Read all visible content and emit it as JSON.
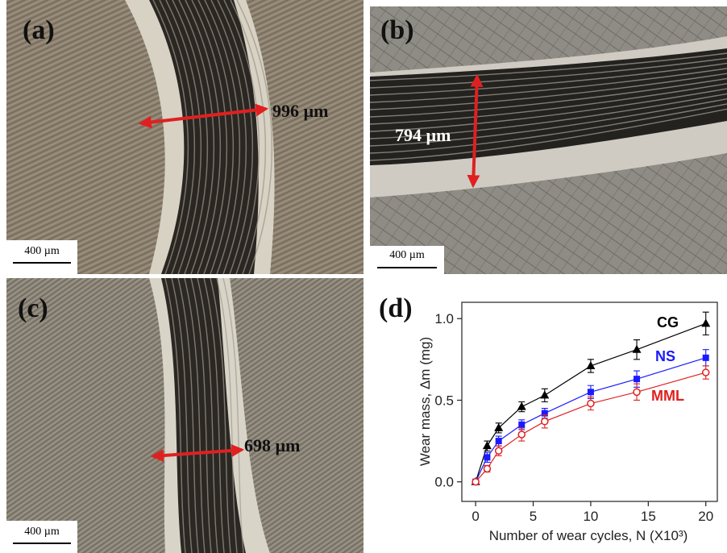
{
  "panels": [
    {
      "label": "(a)",
      "measurement": "996 µm",
      "scale_bar": "400 µm"
    },
    {
      "label": "(b)",
      "measurement": "794 µm",
      "scale_bar": "400 µm"
    },
    {
      "label": "(c)",
      "measurement": "698 µm",
      "scale_bar": "400 µm"
    }
  ],
  "chart_data": {
    "type": "line",
    "panel_label": "(d)",
    "x_label": "Number of wear cycles, N (X10³)",
    "y_label": "Wear mass, Δm (mg)",
    "x": [
      0,
      1,
      2,
      4,
      6,
      10,
      14,
      20
    ],
    "xlim": [
      -1.2,
      21
    ],
    "ylim": [
      -0.12,
      1.1
    ],
    "xticks": [
      0,
      5,
      10,
      15,
      20
    ],
    "yticks": [
      {
        "value": 0,
        "label": "0.0"
      },
      {
        "value": 0.5,
        "label": "0.5"
      },
      {
        "value": 1,
        "label": "1.0"
      }
    ],
    "series": [
      {
        "name": "CG",
        "color": "#000000",
        "marker": "triangle",
        "values": [
          0,
          0.22,
          0.33,
          0.46,
          0.53,
          0.71,
          0.81,
          0.97
        ],
        "errors": [
          0,
          0.03,
          0.03,
          0.03,
          0.04,
          0.04,
          0.06,
          0.07
        ]
      },
      {
        "name": "NS",
        "color": "#1a1aff",
        "marker": "square",
        "values": [
          0,
          0.15,
          0.25,
          0.35,
          0.42,
          0.55,
          0.63,
          0.76
        ],
        "errors": [
          0,
          0.03,
          0.03,
          0.03,
          0.03,
          0.04,
          0.05,
          0.05
        ]
      },
      {
        "name": "MML",
        "color": "#e02020",
        "marker": "open-circle",
        "values": [
          0,
          0.08,
          0.19,
          0.29,
          0.37,
          0.48,
          0.55,
          0.67
        ],
        "errors": [
          0,
          0.02,
          0.03,
          0.04,
          0.04,
          0.04,
          0.05,
          0.04
        ]
      }
    ]
  }
}
